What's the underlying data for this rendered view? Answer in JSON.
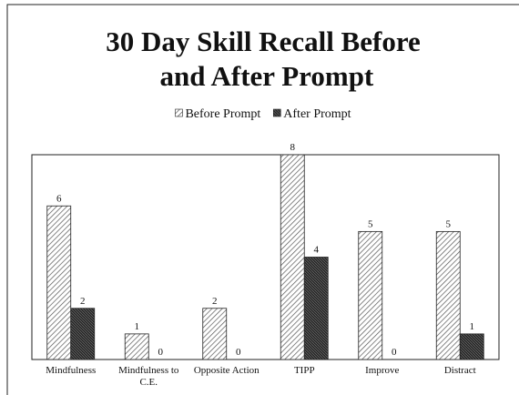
{
  "chart_data": {
    "type": "bar",
    "title": "30 Day Skill Recall Before and After Prompt",
    "categories": [
      "Mindfulness",
      "Mindfulness to C.E.",
      "Opposite Action",
      "TIPP",
      "Improve",
      "Distract"
    ],
    "series": [
      {
        "name": "Before Prompt",
        "color": "#ffffff",
        "values": [
          6,
          1,
          2,
          8,
          5,
          5
        ]
      },
      {
        "name": "After Prompt",
        "color": "#2a2a2a",
        "values": [
          2,
          0,
          0,
          4,
          0,
          1
        ]
      }
    ],
    "ylim": [
      0,
      8
    ],
    "legend": "top",
    "data_labels": true
  }
}
